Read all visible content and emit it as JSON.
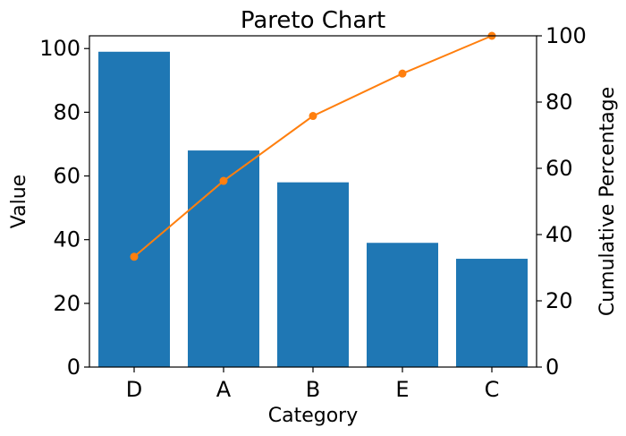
{
  "chart_data": {
    "type": "bar",
    "title": "Pareto Chart",
    "xlabel": "Category",
    "ylabel": "Value",
    "y2label": "Cumulative Percentage",
    "categories": [
      "D",
      "A",
      "B",
      "E",
      "C"
    ],
    "series": [
      {
        "type": "bar",
        "axis": "left",
        "values": [
          99,
          68,
          58,
          39,
          34
        ],
        "color": "#1f77b4"
      },
      {
        "type": "line",
        "axis": "right",
        "values": [
          33.3,
          56.2,
          75.8,
          88.6,
          100
        ],
        "color": "#ff7f0e"
      }
    ],
    "ylim": [
      0,
      104
    ],
    "y2lim": [
      0,
      100
    ],
    "yticks": [
      0,
      20,
      40,
      60,
      80,
      100
    ],
    "y2ticks": [
      0,
      20,
      40,
      60,
      80,
      100
    ],
    "grid": false
  }
}
